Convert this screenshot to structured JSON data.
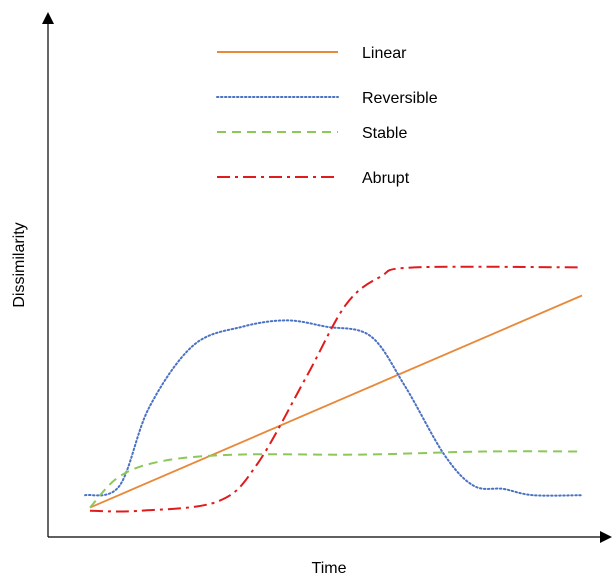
{
  "chart_data": {
    "type": "line",
    "title": "",
    "xlabel": "Time",
    "ylabel": "Dissimilarity",
    "xlim": [
      0,
      100
    ],
    "ylim": [
      0,
      100
    ],
    "grid": false,
    "legend_position": "top-center",
    "series": [
      {
        "name": "Linear",
        "color": "#e8893a",
        "style": "solid",
        "points": [
          [
            0,
            3
          ],
          [
            100,
            71
          ]
        ]
      },
      {
        "name": "Reversible",
        "color": "#4a72c4",
        "style": "dotted",
        "points": [
          [
            -1,
            7
          ],
          [
            6,
            10
          ],
          [
            12,
            35
          ],
          [
            21,
            55
          ],
          [
            31,
            61
          ],
          [
            40,
            63
          ],
          [
            48,
            61
          ],
          [
            57,
            58
          ],
          [
            64,
            42
          ],
          [
            72,
            20
          ],
          [
            78,
            10
          ],
          [
            84,
            9
          ],
          [
            90,
            7
          ],
          [
            100,
            7
          ]
        ]
      },
      {
        "name": "Stable",
        "color": "#8cc858",
        "style": "dashed",
        "points": [
          [
            0,
            3
          ],
          [
            6,
            13
          ],
          [
            15,
            18
          ],
          [
            30,
            20
          ],
          [
            55,
            20
          ],
          [
            80,
            21
          ],
          [
            100,
            21
          ]
        ]
      },
      {
        "name": "Abrupt",
        "color": "#e01b1b",
        "style": "dashdot",
        "points": [
          [
            0,
            2
          ],
          [
            10,
            2
          ],
          [
            26,
            5
          ],
          [
            34,
            17
          ],
          [
            44,
            45
          ],
          [
            52,
            68
          ],
          [
            59,
            77
          ],
          [
            66,
            80
          ],
          [
            100,
            80
          ]
        ]
      }
    ]
  }
}
